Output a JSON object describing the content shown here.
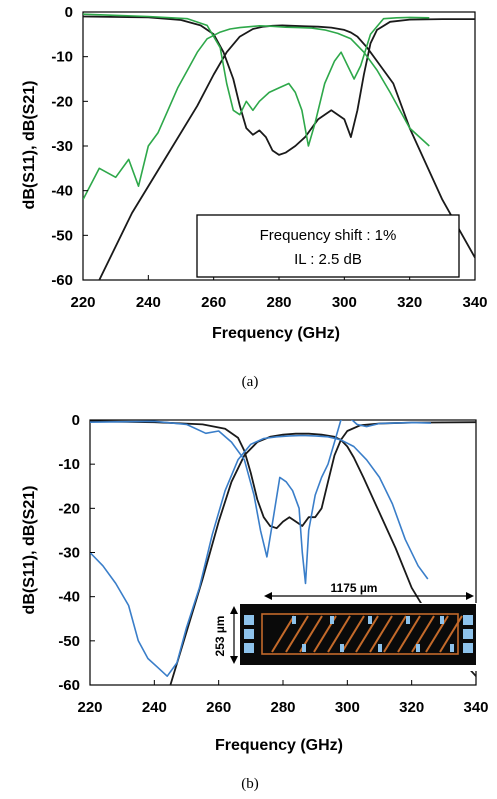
{
  "chart_data": [
    {
      "type": "line",
      "caption": "(a)",
      "xlabel": "Frequency (GHz)",
      "ylabel": "dB(S11), dB(S21)",
      "xlim": [
        220,
        340
      ],
      "ylim": [
        -60,
        0
      ],
      "xticks": [
        "220",
        "240",
        "260",
        "280",
        "300",
        "320",
        "340"
      ],
      "yticks": [
        "0",
        "-10",
        "-20",
        "-30",
        "-40",
        "-50",
        "-60"
      ],
      "grid": false,
      "annotation": [
        "Frequency shift : 1%",
        "IL : 2.5 dB"
      ],
      "colors": {
        "measured": "#2ea84a",
        "simulated": "#1a1a1a"
      },
      "series": [
        {
          "color": "#1a1a1a",
          "x": [
            225,
            235,
            245,
            255,
            260,
            264,
            268,
            272,
            275,
            278,
            281,
            284,
            288,
            292,
            296,
            300,
            302,
            304,
            307,
            310,
            315,
            320,
            330,
            340
          ],
          "y": [
            -60,
            -45,
            -33,
            -21,
            -14,
            -9,
            -5.5,
            -3.8,
            -3.3,
            -3.1,
            -3,
            -3.1,
            -3.2,
            -3.3,
            -3.5,
            -4,
            -4.6,
            -5.5,
            -8,
            -11,
            -16,
            -26,
            -42,
            -55
          ]
        },
        {
          "color": "#1a1a1a",
          "x": [
            220,
            240,
            250,
            256,
            260,
            263,
            266,
            268,
            270,
            272,
            274,
            276,
            278,
            280,
            282,
            285,
            288,
            292,
            296,
            300,
            302,
            304,
            306,
            308,
            310,
            314,
            320,
            330,
            340
          ],
          "y": [
            -1,
            -1.2,
            -1.8,
            -3,
            -5,
            -9,
            -15,
            -21,
            -26,
            -27.5,
            -26.5,
            -28,
            -31,
            -32,
            -31.5,
            -30,
            -28,
            -24,
            -22,
            -24,
            -28,
            -22,
            -14,
            -7,
            -4,
            -2.2,
            -1.7,
            -1.6,
            -1.6
          ]
        },
        {
          "color": "#2ea84a",
          "x": [
            220,
            225,
            230,
            234,
            237,
            240,
            243,
            246,
            249,
            252,
            255,
            258,
            262,
            265,
            268,
            271,
            274,
            278,
            282,
            286,
            290,
            294,
            298,
            302,
            306,
            310,
            314,
            320,
            326
          ],
          "y": [
            -42,
            -35,
            -37,
            -33,
            -39,
            -30,
            -27,
            -22,
            -17,
            -13,
            -9,
            -6,
            -4.5,
            -3.8,
            -3.5,
            -3.3,
            -3.1,
            -3.2,
            -3.4,
            -3.5,
            -3.6,
            -4,
            -4.8,
            -6,
            -9,
            -13,
            -18,
            -26,
            -30
          ]
        },
        {
          "color": "#2ea84a",
          "x": [
            220,
            240,
            252,
            258,
            262,
            264,
            266,
            268,
            270,
            272,
            274,
            277,
            280,
            283,
            285,
            287,
            289,
            291,
            294,
            297,
            299,
            301,
            303,
            305,
            308,
            312,
            316,
            320,
            326
          ],
          "y": [
            -0.5,
            -1,
            -1.5,
            -3,
            -8,
            -16,
            -22,
            -23,
            -20,
            -22,
            -20,
            -18,
            -17,
            -16,
            -18,
            -22,
            -30,
            -25,
            -16,
            -11,
            -9,
            -12,
            -15,
            -12,
            -5,
            -1.5,
            -1.3,
            -1.2,
            -1.3
          ]
        }
      ]
    },
    {
      "type": "line",
      "caption": "(b)",
      "xlabel": "Frequency (GHz)",
      "ylabel": "dB(S11), dB(S21)",
      "xlim": [
        220,
        340
      ],
      "ylim": [
        -60,
        0
      ],
      "xticks": [
        "220",
        "240",
        "260",
        "280",
        "300",
        "320",
        "340"
      ],
      "yticks": [
        "0",
        "-10",
        "-20",
        "-30",
        "-40",
        "-50",
        "-60"
      ],
      "grid": false,
      "inset": {
        "width_label": "1175 µm",
        "height_label": "253 µm"
      },
      "colors": {
        "measured": "#3a7ec9",
        "simulated": "#1a1a1a"
      },
      "series": [
        {
          "color": "#1a1a1a",
          "x": [
            245,
            250,
            255,
            260,
            264,
            268,
            272,
            276,
            280,
            284,
            288,
            292,
            296,
            298,
            300,
            302,
            305,
            310,
            315,
            320,
            330,
            340
          ],
          "y": [
            -60,
            -48,
            -36,
            -23,
            -14,
            -8,
            -5,
            -3.8,
            -3.3,
            -3.1,
            -3.1,
            -3.3,
            -3.8,
            -4.5,
            -6,
            -8.5,
            -13,
            -21,
            -29,
            -38,
            -50,
            -58
          ]
        },
        {
          "color": "#1a1a1a",
          "x": [
            220,
            240,
            255,
            262,
            266,
            268,
            270,
            272,
            274,
            276,
            278,
            280,
            282,
            284,
            286,
            288,
            290,
            292,
            294,
            296,
            298,
            300,
            304,
            310,
            320,
            340
          ],
          "y": [
            -0.3,
            -0.5,
            -1,
            -2,
            -4,
            -7,
            -12,
            -18,
            -22,
            -24,
            -24.5,
            -23,
            -22,
            -23,
            -24,
            -22,
            -22,
            -20,
            -14,
            -8,
            -4.5,
            -2.5,
            -1.2,
            -0.8,
            -0.6,
            -0.5
          ]
        },
        {
          "color": "#3a7ec9",
          "x": [
            220,
            224,
            228,
            232,
            235,
            238,
            241,
            244,
            247,
            250,
            254,
            258,
            262,
            266,
            270,
            274,
            278,
            282,
            286,
            290,
            294,
            298,
            302,
            306,
            310,
            314,
            318,
            322,
            325
          ],
          "y": [
            -30,
            -33,
            -37,
            -42,
            -50,
            -54,
            -56,
            -58,
            -55,
            -47,
            -38,
            -26,
            -16,
            -9,
            -5.5,
            -4.2,
            -3.8,
            -3.6,
            -3.5,
            -3.6,
            -3.8,
            -4.5,
            -6,
            -9,
            -13,
            -19,
            -27,
            -33,
            -36
          ]
        },
        {
          "color": "#3a7ec9",
          "x": [
            220,
            240,
            250,
            256,
            260,
            264,
            268,
            271,
            273,
            275,
            277,
            279,
            281,
            283,
            285,
            286,
            287,
            288,
            290,
            292,
            294,
            296,
            298,
            300,
            303,
            306,
            310,
            320,
            326
          ],
          "y": [
            -0.5,
            -0.3,
            -1,
            -3,
            -2.5,
            -5,
            -9,
            -17,
            -25,
            -31,
            -22,
            -13,
            -14,
            -16,
            -20,
            -30,
            -37,
            -25,
            -17,
            -13,
            -10,
            -5,
            0,
            1,
            -1,
            -1.5,
            -0.8,
            -0.6,
            -0.7
          ]
        }
      ]
    }
  ]
}
